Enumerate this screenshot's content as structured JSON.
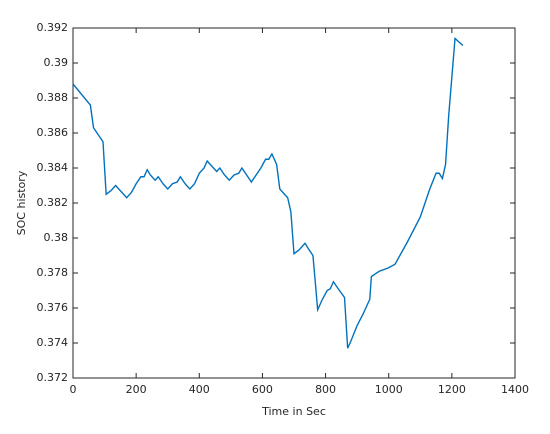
{
  "chart_data": {
    "type": "line",
    "xlabel": "Time in Sec",
    "ylabel": "SOC history",
    "x": [
      0,
      55,
      65,
      80,
      95,
      105,
      120,
      135,
      150,
      170,
      185,
      200,
      215,
      225,
      235,
      245,
      260,
      270,
      285,
      300,
      315,
      330,
      340,
      355,
      370,
      385,
      400,
      415,
      425,
      440,
      455,
      465,
      480,
      495,
      510,
      525,
      535,
      550,
      565,
      580,
      595,
      610,
      620,
      630,
      645,
      655,
      670,
      680,
      690,
      700,
      715,
      735,
      745,
      760,
      775,
      790,
      805,
      815,
      825,
      840,
      860,
      870,
      880,
      900,
      920,
      940,
      945,
      970,
      1000,
      1020,
      1060,
      1100,
      1130,
      1150,
      1160,
      1170,
      1180,
      1190,
      1210,
      1235
    ],
    "series": [
      {
        "name": "SOC",
        "color": "#0072bd",
        "values": [
          0.3888,
          0.3876,
          0.3863,
          0.3859,
          0.3855,
          0.3825,
          0.3827,
          0.383,
          0.3827,
          0.3823,
          0.3826,
          0.3831,
          0.3835,
          0.3835,
          0.3839,
          0.3836,
          0.3833,
          0.3835,
          0.3831,
          0.3828,
          0.3831,
          0.3832,
          0.3835,
          0.3831,
          0.3828,
          0.3831,
          0.3837,
          0.384,
          0.3844,
          0.3841,
          0.3838,
          0.384,
          0.3836,
          0.3833,
          0.3836,
          0.3837,
          0.384,
          0.3836,
          0.3832,
          0.3836,
          0.384,
          0.3845,
          0.3845,
          0.3848,
          0.3842,
          0.3828,
          0.3825,
          0.3823,
          0.3815,
          0.3791,
          0.3793,
          0.3797,
          0.3794,
          0.379,
          0.3759,
          0.3765,
          0.377,
          0.3771,
          0.3775,
          0.3771,
          0.3766,
          0.3737,
          0.3741,
          0.375,
          0.3757,
          0.3765,
          0.3778,
          0.3781,
          0.3783,
          0.3785,
          0.3798,
          0.3812,
          0.3828,
          0.3837,
          0.3837,
          0.3834,
          0.3842,
          0.387,
          0.3914,
          0.391
        ]
      }
    ],
    "xlim": [
      0,
      1400
    ],
    "xticks": [
      0,
      200,
      400,
      600,
      800,
      1000,
      1200,
      1400
    ],
    "ylim": [
      0.372,
      0.392
    ],
    "yticks": [
      0.372,
      0.374,
      0.376,
      0.378,
      0.38,
      0.382,
      0.384,
      0.386,
      0.388,
      0.39,
      0.392
    ],
    "grid": false
  }
}
